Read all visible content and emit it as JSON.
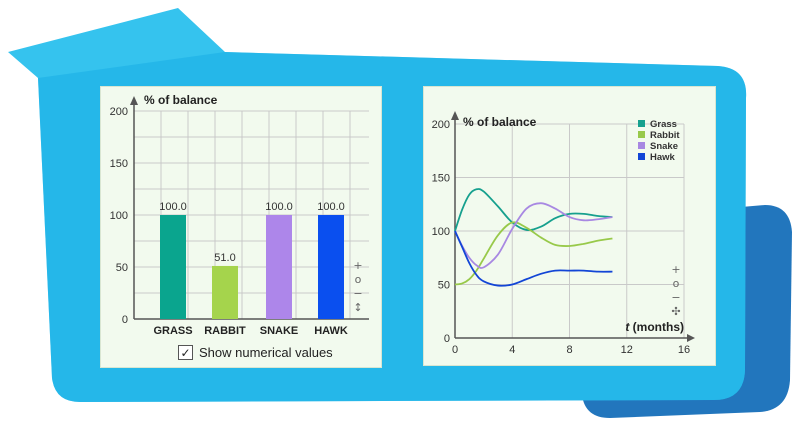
{
  "chart_data": [
    {
      "type": "bar",
      "title": "% of balance",
      "categories": [
        "GRASS",
        "RABBIT",
        "SNAKE",
        "HAWK"
      ],
      "values": [
        100.0,
        51.0,
        100.0,
        100.0
      ],
      "value_labels": [
        "100.0",
        "51.0",
        "100.0",
        "100.0"
      ],
      "colors": [
        "#0aa58e",
        "#a5d44c",
        "#ad86ea",
        "#0a4fef"
      ],
      "ylim": [
        0,
        200
      ],
      "yticks": [
        0,
        50,
        100,
        150,
        200
      ],
      "grid": true
    },
    {
      "type": "line",
      "title": "% of balance",
      "xlabel_prefix": "t",
      "xlabel": " (months)",
      "xlim": [
        0,
        16
      ],
      "ylim": [
        0,
        200
      ],
      "xticks": [
        0,
        4,
        8,
        12,
        16
      ],
      "yticks": [
        0,
        50,
        100,
        150,
        200
      ],
      "grid": true,
      "legend_position": "top-right",
      "series": [
        {
          "name": "Grass",
          "color": "#16a08e",
          "x": [
            0,
            0.5,
            1,
            1.5,
            2,
            3,
            4,
            5,
            6,
            7,
            8,
            9,
            10,
            11
          ],
          "y": [
            100,
            120,
            134,
            139,
            137,
            123,
            108,
            101,
            104,
            112,
            116,
            116,
            114,
            113
          ]
        },
        {
          "name": "Rabbit",
          "color": "#98c94a",
          "x": [
            0,
            0.5,
            1,
            1.5,
            2,
            3,
            4,
            5,
            6,
            7,
            8,
            9,
            10,
            11
          ],
          "y": [
            50,
            51,
            55,
            63,
            74,
            96,
            108,
            103,
            94,
            87,
            86,
            88,
            91,
            93
          ]
        },
        {
          "name": "Snake",
          "color": "#a888e2",
          "x": [
            0,
            0.5,
            1,
            1.5,
            2,
            3,
            4,
            5,
            6,
            7,
            8,
            9,
            10,
            11
          ],
          "y": [
            100,
            86,
            75,
            68,
            66,
            78,
            102,
            121,
            126,
            121,
            113,
            110,
            111,
            113
          ]
        },
        {
          "name": "Hawk",
          "color": "#1245d6",
          "x": [
            0,
            0.5,
            1,
            1.5,
            2,
            3,
            4,
            5,
            6,
            7,
            8,
            9,
            10,
            11
          ],
          "y": [
            100,
            85,
            70,
            59,
            53,
            49,
            50,
            55,
            60,
            63,
            63,
            63,
            62,
            62
          ]
        }
      ]
    }
  ],
  "controls": {
    "left": [
      "+",
      "o",
      "−",
      "↕"
    ],
    "right": [
      "+",
      "o",
      "−",
      "✣"
    ]
  },
  "show_values": {
    "label": "Show numerical values",
    "checkmark": "✓"
  }
}
